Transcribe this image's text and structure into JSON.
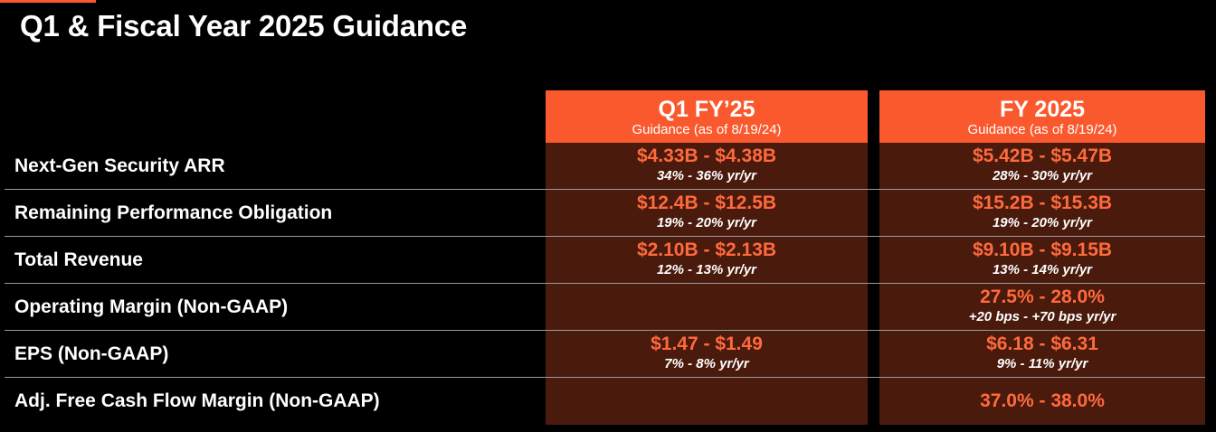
{
  "title": "Q1 & Fiscal Year 2025 Guidance",
  "colors": {
    "accent": "#fa582d",
    "cell_bg": "#4a1a0d",
    "value": "#ff6a3d"
  },
  "columns": [
    {
      "title": "Q1 FY’25",
      "subtitle": "Guidance (as of 8/19/24)"
    },
    {
      "title": "FY 2025",
      "subtitle": "Guidance (as of 8/19/24)"
    }
  ],
  "rows": [
    {
      "label": "Next-Gen Security ARR",
      "q1": {
        "value": "$4.33B - $4.38B",
        "growth": "34% - 36% yr/yr"
      },
      "fy": {
        "value": "$5.42B - $5.47B",
        "growth": "28% - 30% yr/yr"
      }
    },
    {
      "label": "Remaining Performance Obligation",
      "q1": {
        "value": "$12.4B - $12.5B",
        "growth": "19% - 20% yr/yr"
      },
      "fy": {
        "value": "$15.2B - $15.3B",
        "growth": "19% - 20% yr/yr"
      }
    },
    {
      "label": "Total Revenue",
      "q1": {
        "value": "$2.10B - $2.13B",
        "growth": "12% - 13% yr/yr"
      },
      "fy": {
        "value": "$9.10B - $9.15B",
        "growth": "13% - 14% yr/yr"
      }
    },
    {
      "label": "Operating Margin (Non-GAAP)",
      "q1": {
        "value": "",
        "growth": ""
      },
      "fy": {
        "value": "27.5% - 28.0%",
        "growth": "+20 bps - +70 bps yr/yr"
      }
    },
    {
      "label": "EPS (Non-GAAP)",
      "q1": {
        "value": "$1.47 - $1.49",
        "growth": "7% - 8% yr/yr"
      },
      "fy": {
        "value": "$6.18 - $6.31",
        "growth": "9% - 11% yr/yr"
      }
    },
    {
      "label": "Adj. Free Cash Flow Margin (Non-GAAP)",
      "q1": {
        "value": "",
        "growth": ""
      },
      "fy": {
        "value": "37.0% - 38.0%",
        "growth": ""
      }
    }
  ]
}
